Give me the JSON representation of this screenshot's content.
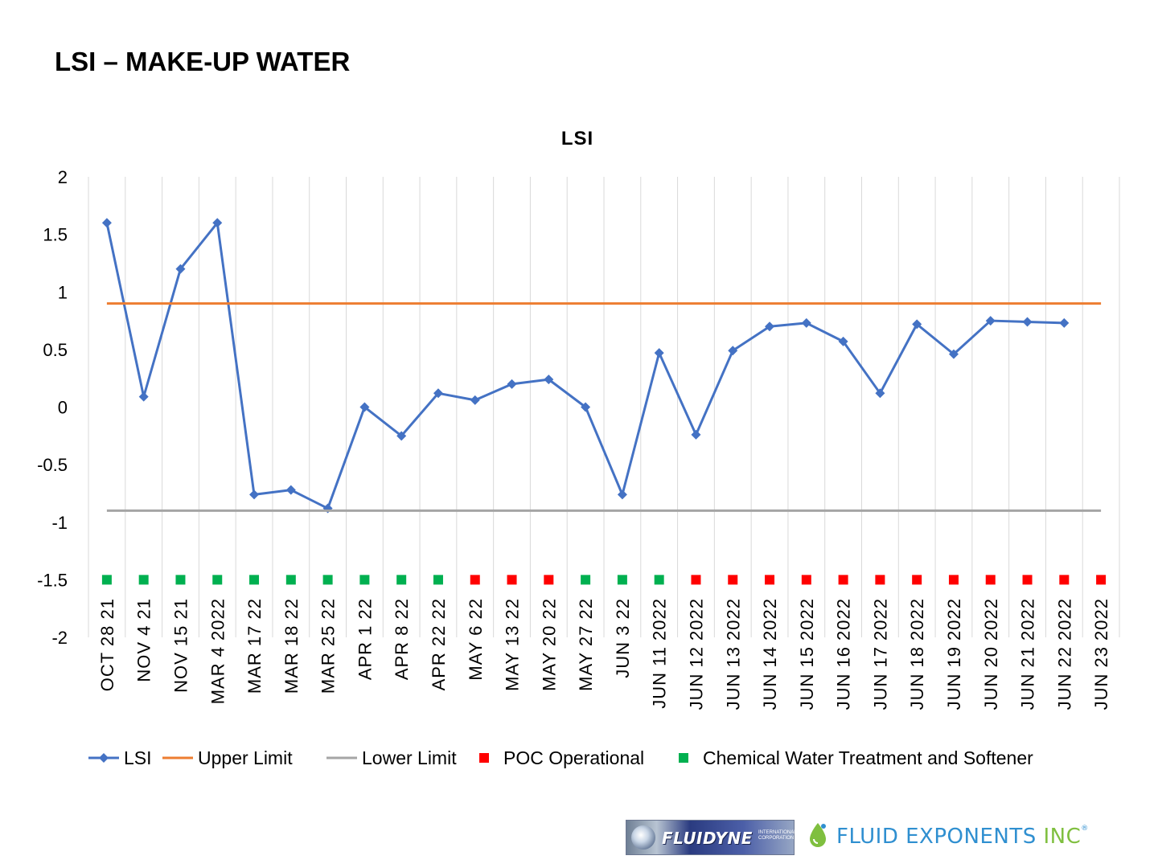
{
  "slide": {
    "title": "LSI – MAKE-UP WATER"
  },
  "colors": {
    "lsi": "#4472C4",
    "upper": "#ED7D31",
    "lower": "#A5A5A5",
    "poc": "#FF0000",
    "chem": "#00B050",
    "grid": "#D9D9D9",
    "text": "#000000"
  },
  "chart_data": {
    "type": "line",
    "title": "LSI",
    "xlabel": "",
    "ylabel": "",
    "ylim": [
      -2,
      2
    ],
    "ytick_step": 0.5,
    "yticks": [
      "2",
      "1.5",
      "1",
      "0.5",
      "0",
      "-0.5",
      "-1",
      "-1.5",
      "-2"
    ],
    "grid": "vertical",
    "legend_position": "bottom",
    "categories": [
      "OCT  28  21",
      "NOV  4  21",
      "NOV  15  21",
      "MAR  4  2022",
      "MAR  17  22",
      "MAR  18  22",
      "MAR  25  22",
      "APR  1  22",
      "APR  8  22",
      "APR  22  22",
      "MAY  6  22",
      "MAY  13  22",
      "MAY  20  22",
      "MAY  27  22",
      "JUN  3  22",
      "JUN  11  2022",
      "JUN  12  2022",
      "JUN  13  2022",
      "JUN  14  2022",
      "JUN  15  2022",
      "JUN  16  2022",
      "JUN  17  2022",
      "JUN  18  2022",
      "JUN  19  2022",
      "JUN  20  2022",
      "JUN  21  2022",
      "JUN  22  2022",
      "JUN  23  2022"
    ],
    "series": [
      {
        "name": "LSI",
        "kind": "line-marker",
        "values": [
          1.6,
          0.09,
          1.2,
          1.6,
          -0.76,
          -0.72,
          -0.88,
          0.0,
          -0.25,
          0.12,
          0.06,
          0.2,
          0.24,
          0.0,
          -0.76,
          0.47,
          -0.24,
          0.49,
          0.7,
          0.73,
          0.57,
          0.12,
          0.72,
          0.46,
          0.75,
          0.74,
          0.73,
          null
        ]
      },
      {
        "name": "Upper Limit",
        "kind": "line",
        "values": [
          0.9,
          0.9,
          0.9,
          0.9,
          0.9,
          0.9,
          0.9,
          0.9,
          0.9,
          0.9,
          0.9,
          0.9,
          0.9,
          0.9,
          0.9,
          0.9,
          0.9,
          0.9,
          0.9,
          0.9,
          0.9,
          0.9,
          0.9,
          0.9,
          0.9,
          0.9,
          0.9,
          0.9
        ]
      },
      {
        "name": "Lower Limit",
        "kind": "line",
        "values": [
          -0.9,
          -0.9,
          -0.9,
          -0.9,
          -0.9,
          -0.9,
          -0.9,
          -0.9,
          -0.9,
          -0.9,
          -0.9,
          -0.9,
          -0.9,
          -0.9,
          -0.9,
          -0.9,
          -0.9,
          -0.9,
          -0.9,
          -0.9,
          -0.9,
          -0.9,
          -0.9,
          -0.9,
          -0.9,
          -0.9,
          -0.9,
          -0.9
        ]
      },
      {
        "name": "POC Operational",
        "kind": "marker",
        "values": [
          null,
          null,
          null,
          null,
          null,
          null,
          null,
          null,
          null,
          null,
          -1.5,
          -1.5,
          -1.5,
          null,
          null,
          null,
          -1.5,
          -1.5,
          -1.5,
          -1.5,
          -1.5,
          -1.5,
          -1.5,
          -1.5,
          -1.5,
          -1.5,
          -1.5,
          -1.5
        ]
      },
      {
        "name": "Chemical Water Treatment and Softener",
        "kind": "marker",
        "values": [
          -1.5,
          -1.5,
          -1.5,
          -1.5,
          -1.5,
          -1.5,
          -1.5,
          -1.5,
          -1.5,
          -1.5,
          null,
          null,
          null,
          -1.5,
          -1.5,
          -1.5,
          null,
          null,
          null,
          null,
          null,
          null,
          null,
          null,
          null,
          null,
          null,
          null
        ]
      }
    ]
  },
  "logos": {
    "left": {
      "name": "FLUIDYNE",
      "sub": "INTERNATIONAL CORPORATION"
    },
    "right": {
      "part1": "FLUID EXPONENTS",
      "part2": "INC",
      "mark": "®"
    }
  }
}
